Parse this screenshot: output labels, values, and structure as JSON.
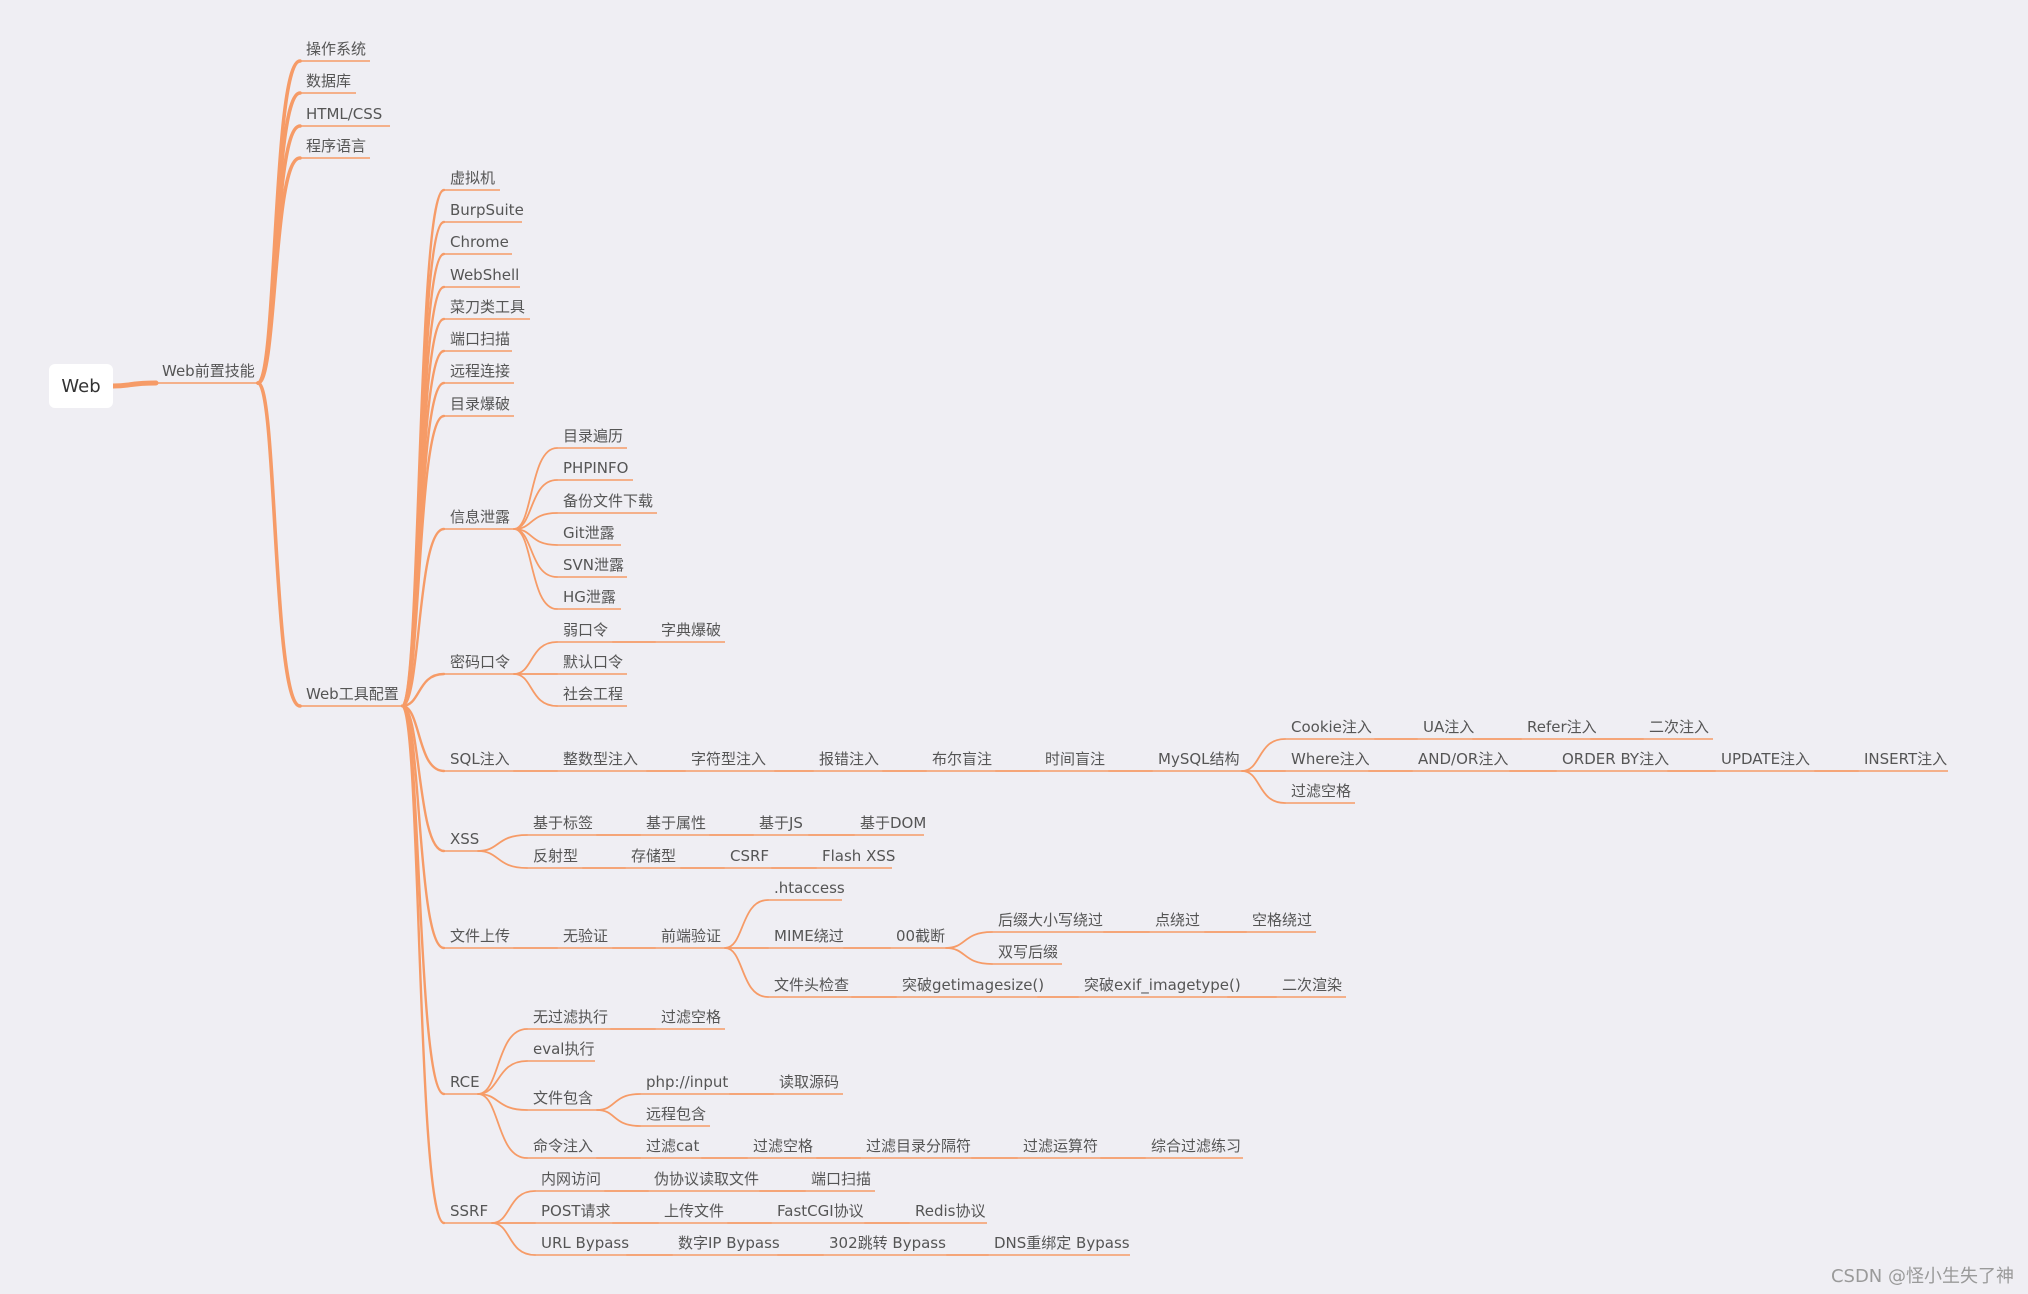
{
  "colors": {
    "background": "#efeef3",
    "branch": "#f69b67",
    "text": "#555555",
    "root_box": "#ffffff"
  },
  "root": "Web",
  "watermark": "CSDN @怪小生失了神",
  "nodes": {
    "n1": "Web前置技能",
    "n1a": "操作系统",
    "n1b": "数据库",
    "n1c": "HTML/CSS",
    "n1d": "程序语言",
    "n2": "Web工具配置",
    "n2a": "虚拟机",
    "n2b": "BurpSuite",
    "n2c": "Chrome",
    "n2d": "WebShell",
    "n2e": "菜刀类工具",
    "n2f": "端口扫描",
    "n2g": "远程连接",
    "n2h": "目录爆破",
    "n3": "信息泄露",
    "n3a": "目录遍历",
    "n3b": "PHPINFO",
    "n3c": "备份文件下载",
    "n3d": "Git泄露",
    "n3e": "SVN泄露",
    "n3f": "HG泄露",
    "n4": "密码口令",
    "n4a": "弱口令",
    "n4a1": "字典爆破",
    "n4b": "默认口令",
    "n4c": "社会工程",
    "n5": "SQL注入",
    "n5a": "整数型注入",
    "n5b": "字符型注入",
    "n5c": "报错注入",
    "n5d": "布尔盲注",
    "n5e": "时间盲注",
    "n5f": "MySQL结构",
    "n5g": "Cookie注入",
    "n5h": "UA注入",
    "n5i": "Refer注入",
    "n5j": "二次注入",
    "n5k": "Where注入",
    "n5l": "AND/OR注入",
    "n5m": "ORDER BY注入",
    "n5n": "UPDATE注入",
    "n5o": "INSERT注入",
    "n5p": "过滤空格",
    "n6": "XSS",
    "n6a": "基于标签",
    "n6b": "基于属性",
    "n6c": "基于JS",
    "n6d": "基于DOM",
    "n6e": "反射型",
    "n6f": "存储型",
    "n6g": "CSRF",
    "n6h": "Flash XSS",
    "n7": "文件上传",
    "n7a": "无验证",
    "n7b": "前端验证",
    "n7c": ".htaccess",
    "n7d": "MIME绕过",
    "n7e": "00截断",
    "n7f": "后缀大小写绕过",
    "n7g": "点绕过",
    "n7h": "空格绕过",
    "n7i": "双写后缀",
    "n7j": "文件头检查",
    "n7k": "突破getimagesize()",
    "n7l": "突破exif_imagetype()",
    "n7m": "二次渲染",
    "n8": "RCE",
    "n8a": "无过滤执行",
    "n8a1": "过滤空格",
    "n8b": "eval执行",
    "n8c": "文件包含",
    "n8c1": "php://input",
    "n8c2": "读取源码",
    "n8c3": "远程包含",
    "n8d": "命令注入",
    "n8d1": "过滤cat",
    "n8d2": "过滤空格",
    "n8d3": "过滤目录分隔符",
    "n8d4": "过滤运算符",
    "n8d5": "综合过滤练习",
    "n9": "SSRF",
    "n9a": "内网访问",
    "n9b": "伪协议读取文件",
    "n9c": "端口扫描",
    "n9d": "POST请求",
    "n9e": "上传文件",
    "n9f": "FastCGI协议",
    "n9g": "Redis协议",
    "n9h": "URL Bypass",
    "n9i": "数字IP Bypass",
    "n9j": "302跳转 Bypass",
    "n9k": "DNS重绑定 Bypass"
  }
}
